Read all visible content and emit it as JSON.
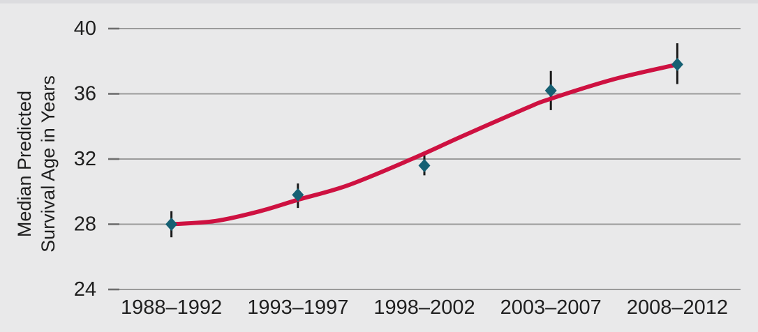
{
  "figure": {
    "background_color": "#e9e9ea",
    "top_strip_color": "#dcdcdf"
  },
  "chart_data": {
    "type": "line",
    "title": "",
    "xlabel": "",
    "ylabel": "Median Predicted Survival Age in Years",
    "ylabel_lines": [
      "Median Predicted",
      "Survival Age in Years"
    ],
    "categories": [
      "1988–1992",
      "1993–1997",
      "1998–2002",
      "2003–2007",
      "2008–2012"
    ],
    "yticks": [
      40,
      36,
      32,
      28,
      24
    ],
    "ylim": [
      24,
      40
    ],
    "grid": "horizontal",
    "legend": "none",
    "series": [
      {
        "name": "Median predicted survival age",
        "marker": "diamond",
        "marker_color": "#166073",
        "errorbar_color": "#1a1a1a",
        "values": [
          28.0,
          29.8,
          31.6,
          36.2,
          37.8
        ],
        "ci_low": [
          27.2,
          29.0,
          31.0,
          35.0,
          36.6
        ],
        "ci_high": [
          28.8,
          30.5,
          32.3,
          37.4,
          39.1
        ]
      }
    ],
    "fit_curve": {
      "name": "Smoothed trend curve",
      "color": "#ce1141",
      "x": [
        0,
        0.35,
        0.7,
        1.0,
        1.4,
        1.9,
        2.3,
        2.8,
        3.0,
        3.5,
        4.0
      ],
      "y": [
        28.0,
        28.2,
        28.8,
        29.5,
        30.4,
        32.0,
        33.4,
        35.1,
        35.7,
        36.9,
        37.8
      ]
    },
    "colors": {
      "grid_line": "#9b9b9b",
      "axis_tick": "#6e6e6e",
      "text": "#1f1f1f"
    }
  }
}
